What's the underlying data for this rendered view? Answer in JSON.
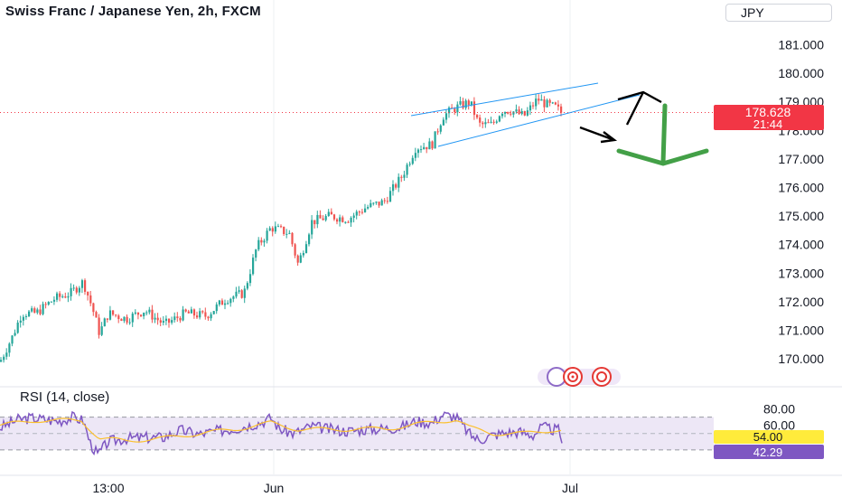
{
  "header": {
    "title": "Swiss Franc / Japanese Yen, 2h, FXCM",
    "currency_button": "JPY"
  },
  "price_axis": {
    "ticks": [
      "181.000",
      "180.000",
      "179.000",
      "178.000",
      "177.000",
      "176.000",
      "175.000",
      "174.000",
      "173.000",
      "172.000",
      "171.000",
      "170.000"
    ],
    "last_price": "178.628",
    "countdown": "21:44"
  },
  "rsi": {
    "title": "RSI (14, close)",
    "ticks": [
      "80.00",
      "60.00"
    ],
    "upper_band": 70,
    "lower_band": 30,
    "rsi_value": "42.29",
    "ma_value": "54.00"
  },
  "time_axis": {
    "labels": [
      "13:00",
      "Jun",
      "Jul"
    ]
  },
  "chart_data": {
    "type": "line",
    "ylim": [
      169.3,
      182.0
    ],
    "price_path": [
      [
        0,
        169.9
      ],
      [
        14,
        170.8
      ],
      [
        24,
        171.6
      ],
      [
        40,
        171.6
      ],
      [
        60,
        172.1
      ],
      [
        78,
        172.3
      ],
      [
        92,
        172.7
      ],
      [
        102,
        171.8
      ],
      [
        110,
        170.9
      ],
      [
        120,
        171.6
      ],
      [
        140,
        171.4
      ],
      [
        160,
        171.7
      ],
      [
        182,
        171.2
      ],
      [
        205,
        171.6
      ],
      [
        228,
        171.5
      ],
      [
        250,
        172.1
      ],
      [
        270,
        172.3
      ],
      [
        284,
        173.9
      ],
      [
        300,
        174.6
      ],
      [
        320,
        174.4
      ],
      [
        330,
        173.3
      ],
      [
        345,
        174.8
      ],
      [
        365,
        175.0
      ],
      [
        385,
        174.9
      ],
      [
        405,
        175.3
      ],
      [
        425,
        175.5
      ],
      [
        445,
        176.4
      ],
      [
        460,
        177.4
      ],
      [
        478,
        177.5
      ],
      [
        490,
        178.5
      ],
      [
        505,
        178.8
      ],
      [
        520,
        179.0
      ],
      [
        530,
        178.2
      ],
      [
        545,
        178.2
      ],
      [
        555,
        178.7
      ],
      [
        565,
        178.7
      ],
      [
        580,
        178.5
      ],
      [
        595,
        179.1
      ],
      [
        605,
        178.9
      ],
      [
        615,
        178.8
      ],
      [
        622,
        178.6
      ]
    ],
    "rsi_path": [
      [
        0,
        57
      ],
      [
        10,
        62
      ],
      [
        20,
        67
      ],
      [
        35,
        69
      ],
      [
        50,
        67
      ],
      [
        65,
        65
      ],
      [
        80,
        70
      ],
      [
        92,
        66
      ],
      [
        100,
        38
      ],
      [
        108,
        24
      ],
      [
        120,
        40
      ],
      [
        140,
        44
      ],
      [
        160,
        45
      ],
      [
        180,
        45
      ],
      [
        200,
        54
      ],
      [
        220,
        49
      ],
      [
        240,
        53
      ],
      [
        260,
        56
      ],
      [
        275,
        60
      ],
      [
        290,
        64
      ],
      [
        300,
        69
      ],
      [
        310,
        55
      ],
      [
        325,
        50
      ],
      [
        345,
        59
      ],
      [
        365,
        55
      ],
      [
        385,
        53
      ],
      [
        405,
        55
      ],
      [
        425,
        56
      ],
      [
        445,
        58
      ],
      [
        460,
        65
      ],
      [
        478,
        63
      ],
      [
        490,
        73
      ],
      [
        505,
        70
      ],
      [
        520,
        49
      ],
      [
        530,
        42
      ],
      [
        545,
        48
      ],
      [
        560,
        51
      ],
      [
        575,
        52
      ],
      [
        590,
        48
      ],
      [
        600,
        58
      ],
      [
        610,
        55
      ],
      [
        618,
        54
      ],
      [
        622,
        42
      ]
    ],
    "rsi_ma_path": [
      [
        0,
        60
      ],
      [
        40,
        66
      ],
      [
        90,
        66
      ],
      [
        110,
        44
      ],
      [
        140,
        41
      ],
      [
        180,
        44
      ],
      [
        220,
        50
      ],
      [
        260,
        55
      ],
      [
        300,
        63
      ],
      [
        330,
        55
      ],
      [
        380,
        55
      ],
      [
        430,
        56
      ],
      [
        480,
        64
      ],
      [
        505,
        67
      ],
      [
        520,
        57
      ],
      [
        545,
        50
      ],
      [
        580,
        50
      ],
      [
        610,
        54
      ],
      [
        622,
        54
      ]
    ]
  },
  "colors": {
    "up": "#26a69a",
    "down": "#ef5350",
    "rsi_line": "#7e57c2",
    "rsi_ma": "#fbc02d",
    "band_fill": "#ede7f6",
    "trendline": "#2196f3",
    "arrow_green": "#43a047",
    "current_price": "#f23645"
  },
  "icons": {
    "replay": "replay-circles-icon"
  }
}
